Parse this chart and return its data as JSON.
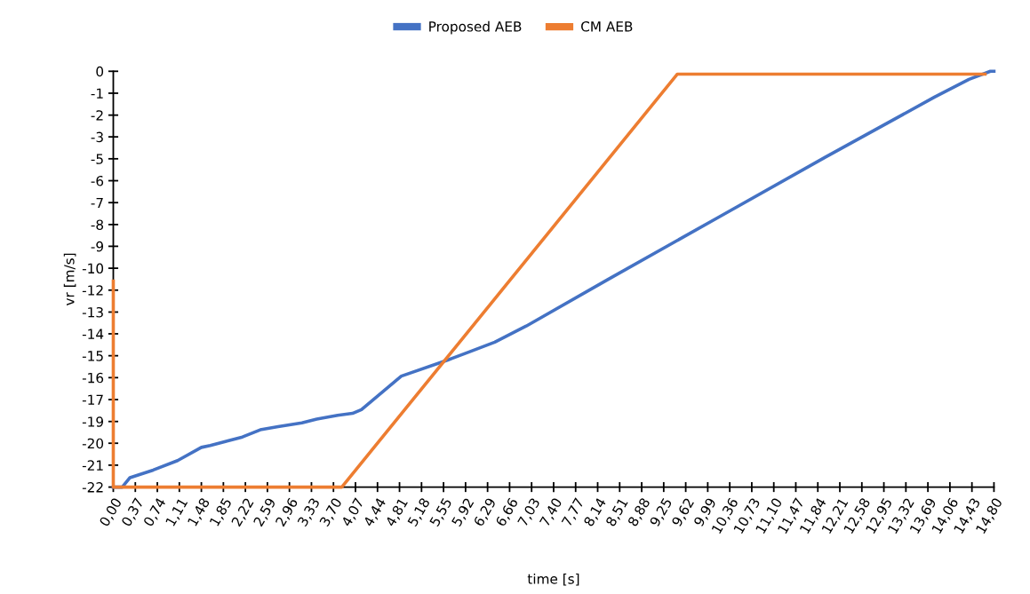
{
  "chart_data": {
    "type": "line",
    "xlabel": "time [s]",
    "ylabel": "vr [m/s]",
    "legend": "top",
    "grid": false,
    "marker": "none",
    "line_style": "solid",
    "xlim": [
      0,
      14.8
    ],
    "ylim": [
      -22,
      0
    ],
    "xticks": [
      {
        "value": 0,
        "label": "0,00"
      },
      {
        "value": 0.37,
        "label": "0,37"
      },
      {
        "value": 0.74,
        "label": "0,74"
      },
      {
        "value": 1.11,
        "label": "1,11"
      },
      {
        "value": 1.48,
        "label": "1,48"
      },
      {
        "value": 1.85,
        "label": "1,85"
      },
      {
        "value": 2.22,
        "label": "2,22"
      },
      {
        "value": 2.59,
        "label": "2,59"
      },
      {
        "value": 2.96,
        "label": "2,96"
      },
      {
        "value": 3.33,
        "label": "3,33"
      },
      {
        "value": 3.7,
        "label": "3,70"
      },
      {
        "value": 4.07,
        "label": "4,07"
      },
      {
        "value": 4.44,
        "label": "4,44"
      },
      {
        "value": 4.81,
        "label": "4,81"
      },
      {
        "value": 5.18,
        "label": "5,18"
      },
      {
        "value": 5.55,
        "label": "5,55"
      },
      {
        "value": 5.92,
        "label": "5,92"
      },
      {
        "value": 6.29,
        "label": "6,29"
      },
      {
        "value": 6.66,
        "label": "6,66"
      },
      {
        "value": 7.03,
        "label": "7,03"
      },
      {
        "value": 7.4,
        "label": "7,40"
      },
      {
        "value": 7.77,
        "label": "7,77"
      },
      {
        "value": 8.14,
        "label": "8,14"
      },
      {
        "value": 8.51,
        "label": "8,51"
      },
      {
        "value": 8.88,
        "label": "8,88"
      },
      {
        "value": 9.25,
        "label": "9,25"
      },
      {
        "value": 9.62,
        "label": "9,62"
      },
      {
        "value": 9.99,
        "label": "9,99"
      },
      {
        "value": 10.36,
        "label": "10,36"
      },
      {
        "value": 10.73,
        "label": "10,73"
      },
      {
        "value": 11.1,
        "label": "11,10"
      },
      {
        "value": 11.47,
        "label": "11,47"
      },
      {
        "value": 11.84,
        "label": "11,84"
      },
      {
        "value": 12.21,
        "label": "12,21"
      },
      {
        "value": 12.58,
        "label": "12,58"
      },
      {
        "value": 12.95,
        "label": "12,95"
      },
      {
        "value": 13.32,
        "label": "13,32"
      },
      {
        "value": 13.69,
        "label": "13,69"
      },
      {
        "value": 14.06,
        "label": "14,06"
      },
      {
        "value": 14.43,
        "label": "14,43"
      },
      {
        "value": 14.8,
        "label": "14,80"
      }
    ],
    "yticks": [
      0,
      {
        "value": -1.16,
        "label": "-1"
      },
      {
        "value": -2.32,
        "label": "-2"
      },
      {
        "value": -3.47,
        "label": "-3"
      },
      {
        "value": -4.63,
        "label": "-5"
      },
      {
        "value": -5.79,
        "label": "-6"
      },
      {
        "value": -6.95,
        "label": "-7"
      },
      {
        "value": -8.11,
        "label": "-8"
      },
      {
        "value": -9.26,
        "label": "-9"
      },
      {
        "value": -10.42,
        "label": "-10"
      },
      {
        "value": -11.58,
        "label": "-12"
      },
      {
        "value": -12.74,
        "label": "-13"
      },
      {
        "value": -13.89,
        "label": "-14"
      },
      {
        "value": -15.05,
        "label": "-15"
      },
      {
        "value": -16.21,
        "label": "-16"
      },
      {
        "value": -17.37,
        "label": "-17"
      },
      {
        "value": -18.53,
        "label": "-19"
      },
      {
        "value": -19.68,
        "label": "-20"
      },
      {
        "value": -20.84,
        "label": "-21"
      },
      -22
    ],
    "series": [
      {
        "name": "Proposed AEB",
        "color": "#4472c4",
        "x": [
          0,
          0.15,
          0.28,
          0.67,
          1.08,
          1.48,
          1.63,
          1.87,
          2.17,
          2.47,
          2.77,
          3.17,
          3.42,
          3.77,
          4.02,
          4.17,
          4.84,
          5.62,
          5.98,
          6.41,
          6.94,
          8.31,
          10.15,
          11.97,
          13.8,
          14.38,
          14.74,
          14.8
        ],
        "values": [
          -22.0,
          -22.0,
          -21.5,
          -21.1,
          -20.6,
          -19.9,
          -19.8,
          -19.6,
          -19.35,
          -18.97,
          -18.8,
          -18.6,
          -18.4,
          -18.2,
          -18.1,
          -17.9,
          -16.13,
          -15.28,
          -14.85,
          -14.33,
          -13.48,
          -11.02,
          -7.76,
          -4.54,
          -1.37,
          -0.43,
          0,
          0
        ]
      },
      {
        "name": "CM AEB",
        "color": "#ed7d31",
        "x": [
          0,
          0,
          3.84,
          9.48,
          14.65
        ],
        "values": [
          -11.1,
          -22.0,
          -22.0,
          -0.15,
          -0.15
        ]
      }
    ]
  }
}
